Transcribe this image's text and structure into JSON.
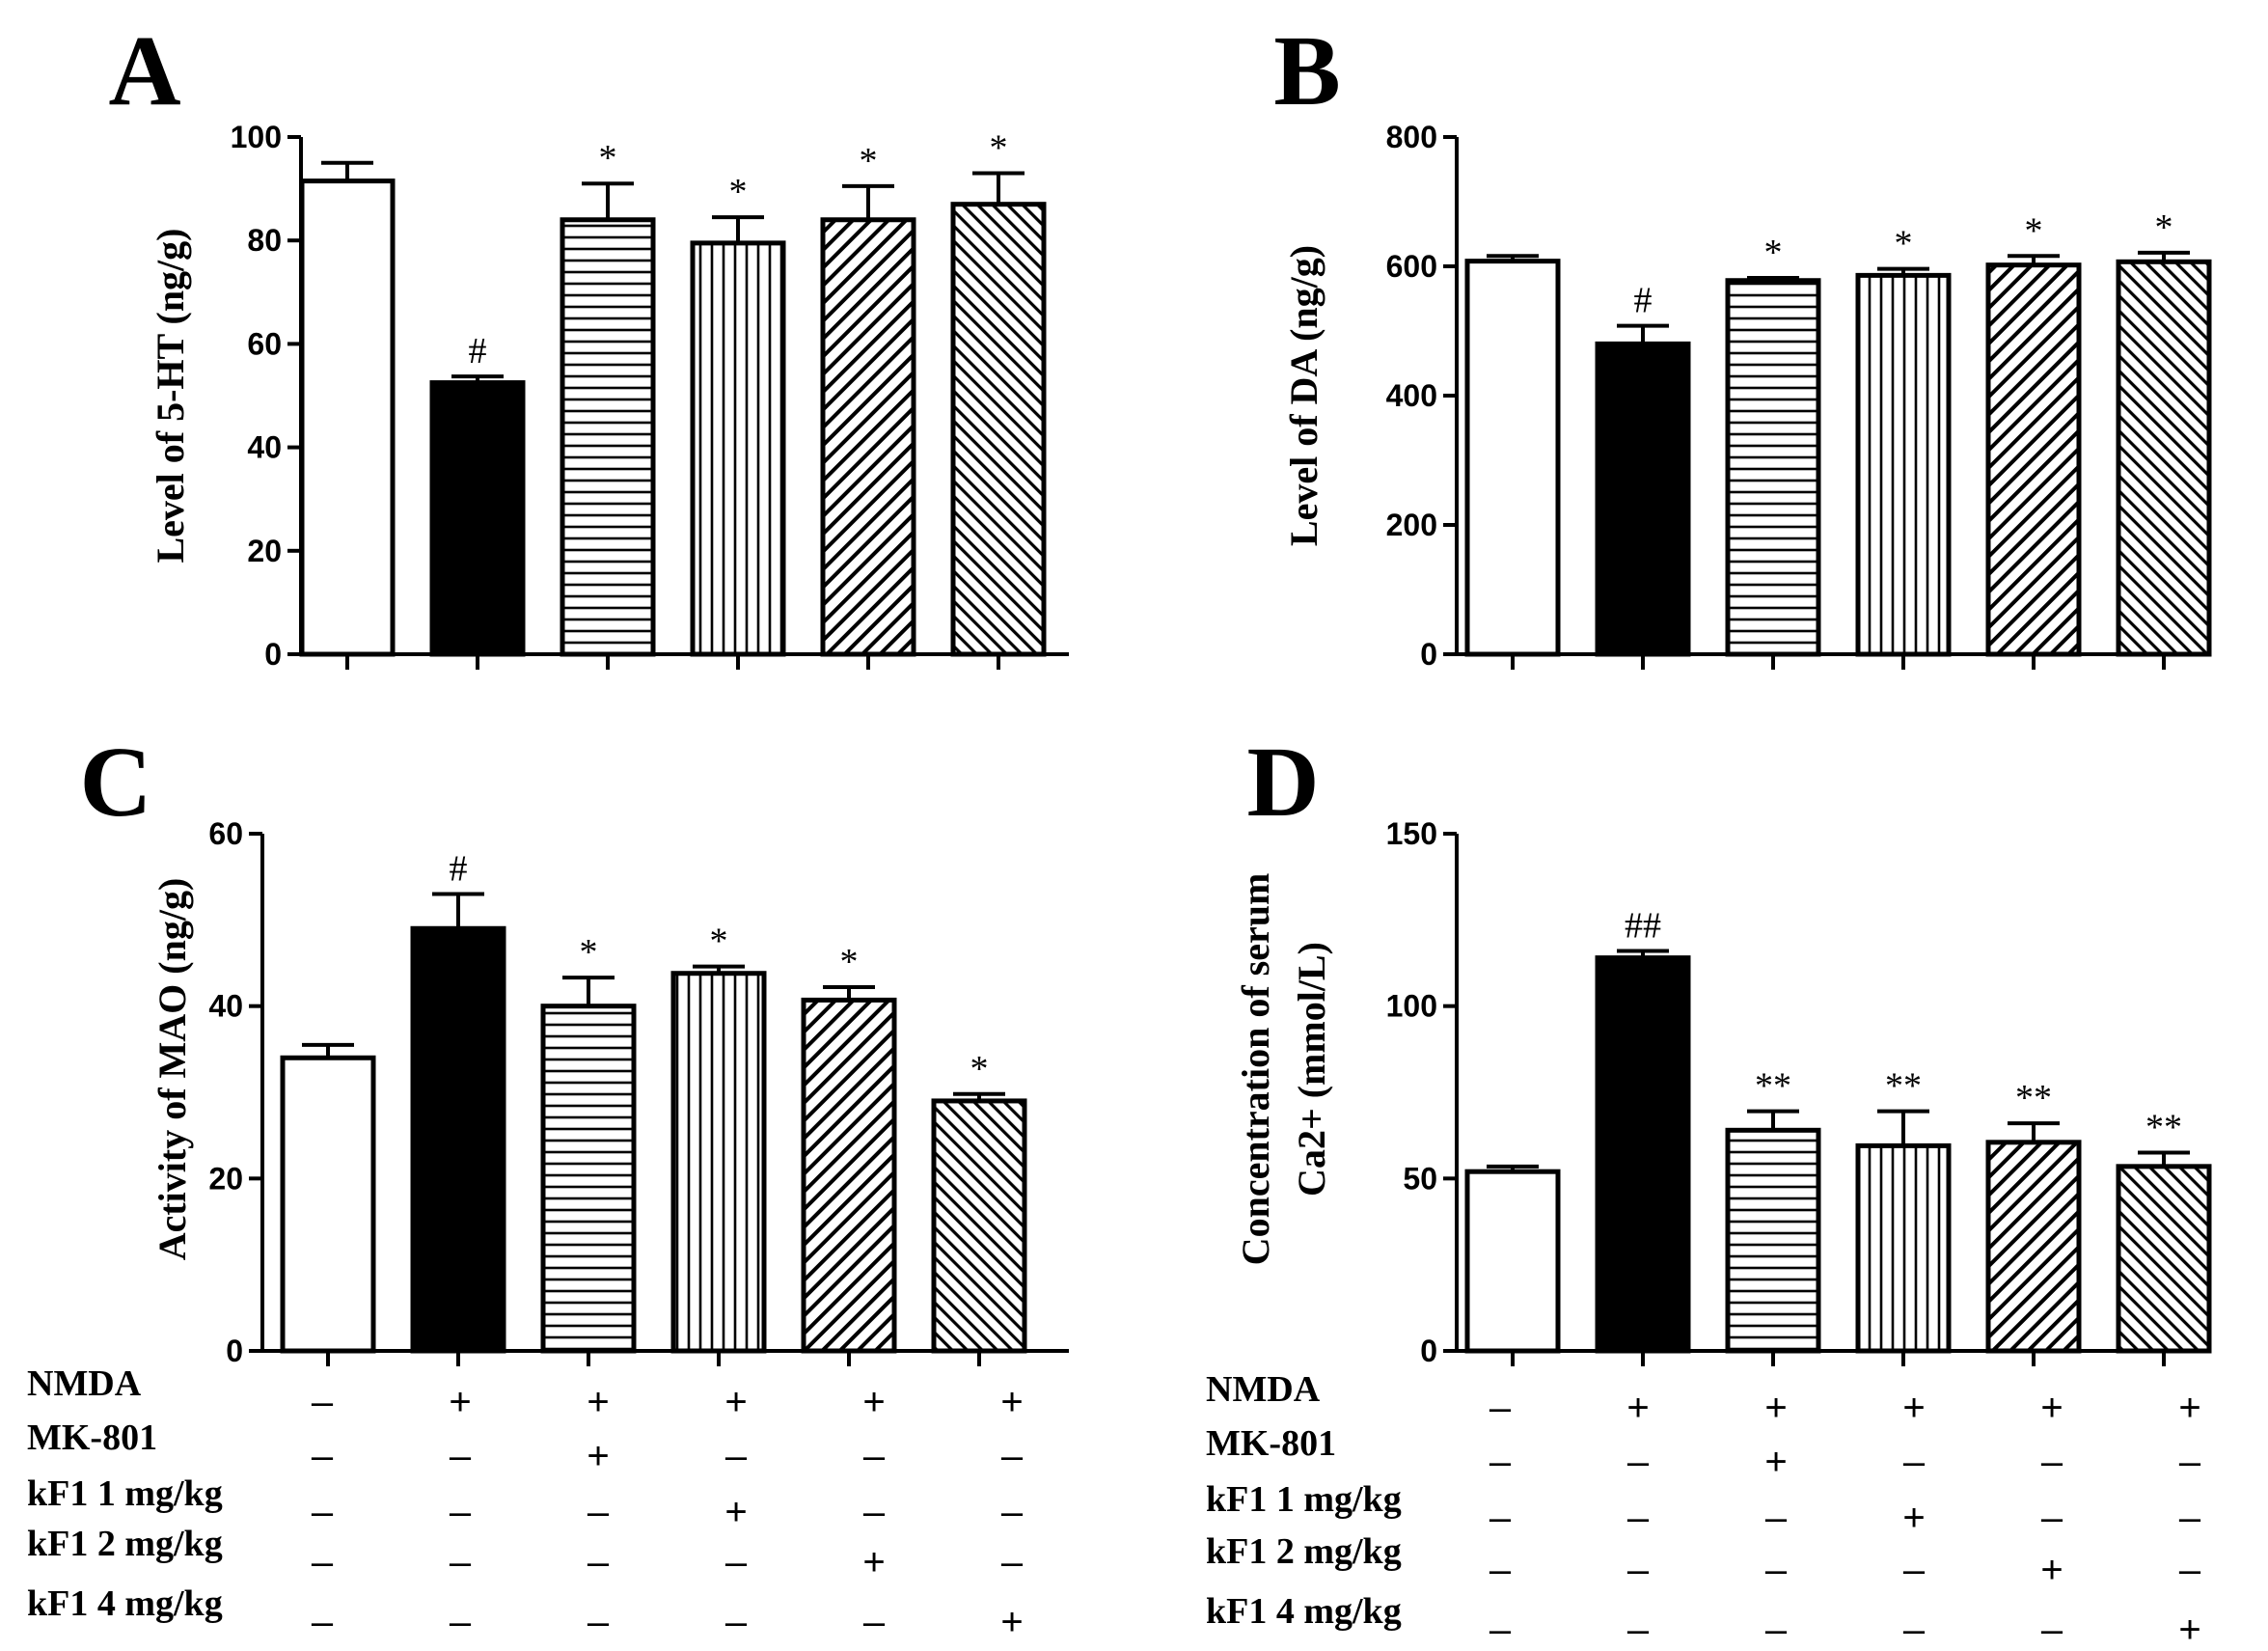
{
  "figure": {
    "groups": [
      "Control",
      "NMDA",
      "NMDA + MK-801",
      "NMDA + kF1 1 mg/kg",
      "NMDA + kF1 2 mg/kg",
      "NMDA + kF1 4 mg/kg"
    ],
    "fills": [
      "white",
      "black",
      "horizontal-lines",
      "vertical-lines",
      "diagonal-lines",
      "dense-diagonal-lines"
    ]
  },
  "chart_data": [
    {
      "panel": "A",
      "type": "bar",
      "title": "",
      "xlabel": "",
      "ylabel": "Level of 5-HT (ng/g)",
      "ylim": [
        0,
        100
      ],
      "yticks": [
        0,
        20,
        40,
        60,
        80,
        100
      ],
      "values": [
        91.5,
        52.5,
        84,
        79.5,
        84,
        87
      ],
      "errors": [
        3.5,
        1.2,
        7,
        5,
        6.5,
        6
      ],
      "marks": [
        "",
        "#",
        "*",
        "*",
        "*",
        "*"
      ]
    },
    {
      "panel": "B",
      "type": "bar",
      "title": "",
      "xlabel": "",
      "ylabel": "Level of DA (ng/g)",
      "ylim": [
        0,
        800
      ],
      "yticks": [
        0,
        200,
        400,
        600,
        800
      ],
      "values": [
        608,
        480,
        578,
        586,
        602,
        607
      ],
      "errors": [
        8,
        28,
        4,
        10,
        14,
        14
      ],
      "marks": [
        "",
        "#",
        "*",
        "*",
        "*",
        "*"
      ]
    },
    {
      "panel": "C",
      "type": "bar",
      "title": "",
      "xlabel": "",
      "ylabel": "Activity of MAO (ng/g)",
      "ylim": [
        0,
        60
      ],
      "yticks": [
        0,
        20,
        40,
        60
      ],
      "values": [
        34,
        49,
        40,
        43.8,
        40.7,
        29
      ],
      "errors": [
        1.5,
        4,
        3.3,
        0.8,
        1.5,
        0.8
      ],
      "marks": [
        "",
        "#",
        "*",
        "*",
        "*",
        "*"
      ]
    },
    {
      "panel": "D",
      "type": "bar",
      "title": "",
      "xlabel": "",
      "ylabel": [
        "Concentration of serum",
        "Ca2+ (mmol/L)"
      ],
      "ylim": [
        0,
        150
      ],
      "yticks": [
        0,
        50,
        100,
        150
      ],
      "values": [
        52,
        114,
        64,
        59.5,
        60.5,
        53.5
      ],
      "errors": [
        1.5,
        2,
        5.5,
        10,
        5.5,
        4
      ],
      "marks": [
        "",
        "##",
        "**",
        "**",
        "**",
        "**"
      ]
    }
  ],
  "treatment_table": {
    "rows": [
      {
        "label": "NMDA",
        "signs": [
          "–",
          "+",
          "+",
          "+",
          "+",
          "+"
        ]
      },
      {
        "label": "MK-801",
        "signs": [
          "–",
          "–",
          "+",
          "–",
          "–",
          "–"
        ]
      },
      {
        "label": "kF1 1 mg/kg",
        "signs": [
          "–",
          "–",
          "–",
          "+",
          "–",
          "–"
        ]
      },
      {
        "label": "kF1 2 mg/kg",
        "signs": [
          "–",
          "–",
          "–",
          "–",
          "+",
          "–"
        ]
      },
      {
        "label": "kF1 4 mg/kg",
        "signs": [
          "–",
          "–",
          "–",
          "–",
          "–",
          "+"
        ]
      }
    ]
  }
}
